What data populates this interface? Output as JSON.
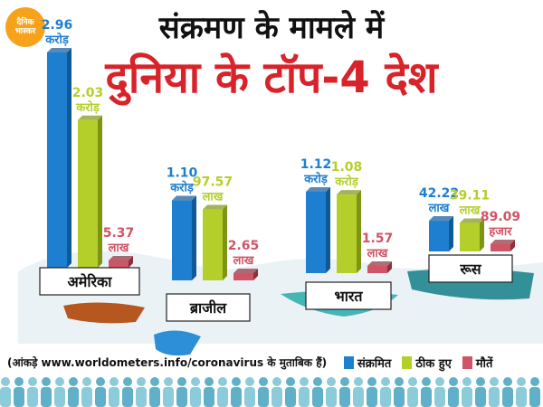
{
  "logo": {
    "line1": "दैनिक",
    "line2": "भास्कर"
  },
  "title_line1": "संक्रमण के मामले में",
  "title_line2": "दुनिया के टॉप-4 देश",
  "source_note": "(आंकड़े www.worldometers.info/coronavirus के मुताबिक हैं)",
  "colors": {
    "infected": "#1e7fd0",
    "recovered": "#b5cf2a",
    "deaths": "#cf5466",
    "map_usa": "#b5571f",
    "map_brazil": "#2d8fd8",
    "map_india": "#1aa6a6",
    "map_russia": "#147f87"
  },
  "chart_data": {
    "type": "bar",
    "categories": [
      "अमेरिका",
      "ब्राजील",
      "भारत",
      "रूस"
    ],
    "series": [
      {
        "name": "संक्रमित",
        "values": [
          29600000,
          11000000,
          11200000,
          4222000
        ]
      },
      {
        "name": "ठीक हुए",
        "values": [
          20300000,
          9757000,
          10800000,
          3911000
        ]
      },
      {
        "name": "मौतें",
        "values": [
          537000,
          265000,
          157000,
          89090
        ]
      }
    ],
    "labels": [
      [
        [
          "2.96",
          "करोड़"
        ],
        [
          "2.03",
          "करोड़"
        ],
        [
          "5.37",
          "लाख"
        ]
      ],
      [
        [
          "1.10",
          "करोड़"
        ],
        [
          "97.57",
          "लाख"
        ],
        [
          "2.65",
          "लाख"
        ]
      ],
      [
        [
          "1.12",
          "करोड़"
        ],
        [
          "1.08",
          "करोड़"
        ],
        [
          "1.57",
          "लाख"
        ]
      ],
      [
        [
          "42.22",
          "लाख"
        ],
        [
          "39.11",
          "लाख"
        ],
        [
          "89.09",
          "हजार"
        ]
      ]
    ],
    "legend_position": "bottom-right"
  }
}
